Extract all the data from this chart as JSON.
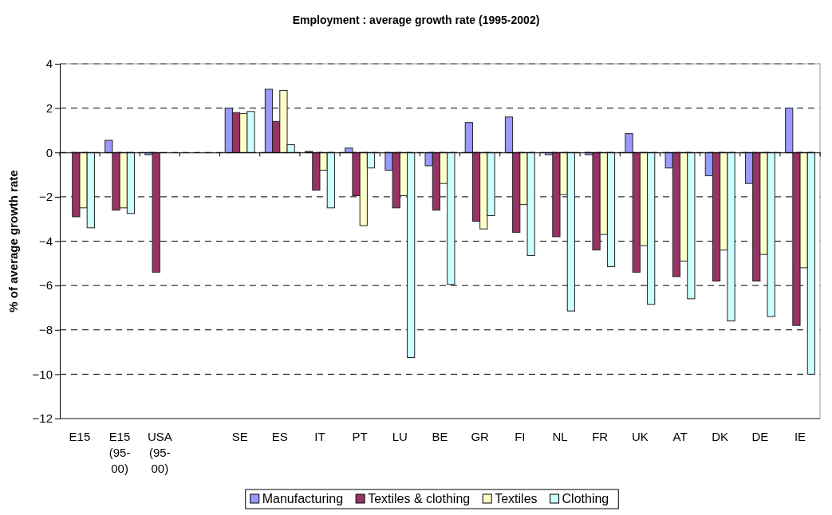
{
  "chart_data": {
    "type": "bar",
    "title": "Employment : average growth rate (1995-2002)",
    "ylabel": "% of average growth rate",
    "categories": [
      "E15",
      "E15 (95-00)",
      "USA (95-00)",
      null,
      "SE",
      "ES",
      "IT",
      "PT",
      "LU",
      "BE",
      "GR",
      "FI",
      "NL",
      "FR",
      "UK",
      "AT",
      "DK",
      "DE",
      "IE"
    ],
    "series": [
      {
        "name": "Manufacturing",
        "color": "#9999ff",
        "values": [
          0,
          0.55,
          -0.1,
          null,
          2.0,
          2.85,
          0.05,
          0.2,
          -0.8,
          -0.6,
          1.35,
          1.6,
          -0.1,
          -0.1,
          0.85,
          -0.7,
          -1.05,
          -1.4,
          2.0
        ]
      },
      {
        "name": "Textiles & clothing",
        "color": "#993366",
        "values": [
          -2.9,
          -2.6,
          -5.4,
          null,
          1.8,
          1.4,
          -1.7,
          -1.95,
          -2.5,
          -2.6,
          -3.1,
          -3.6,
          -3.8,
          -4.4,
          -5.4,
          -5.6,
          -5.8,
          -5.8,
          -7.8
        ]
      },
      {
        "name": "Textiles",
        "color": "#ffffcc",
        "values": [
          -2.5,
          -2.5,
          null,
          null,
          1.75,
          2.8,
          -0.8,
          -3.3,
          -1.95,
          -1.4,
          -3.45,
          -2.35,
          -1.9,
          -3.7,
          -4.2,
          -4.9,
          -4.4,
          -4.6,
          -5.2
        ]
      },
      {
        "name": "Clothing",
        "color": "#ccffff",
        "values": [
          -3.4,
          -2.75,
          null,
          null,
          1.85,
          0.35,
          -2.5,
          -0.7,
          -9.25,
          -5.95,
          -2.85,
          -4.65,
          -7.15,
          -5.15,
          -6.85,
          -6.6,
          -7.6,
          -7.4,
          -10.0
        ]
      }
    ],
    "ylim": [
      -12,
      4
    ],
    "yticks": [
      -12,
      -10,
      -8,
      -6,
      -4,
      -2,
      0,
      2,
      4
    ],
    "grid": "y",
    "legend": "bottom"
  }
}
